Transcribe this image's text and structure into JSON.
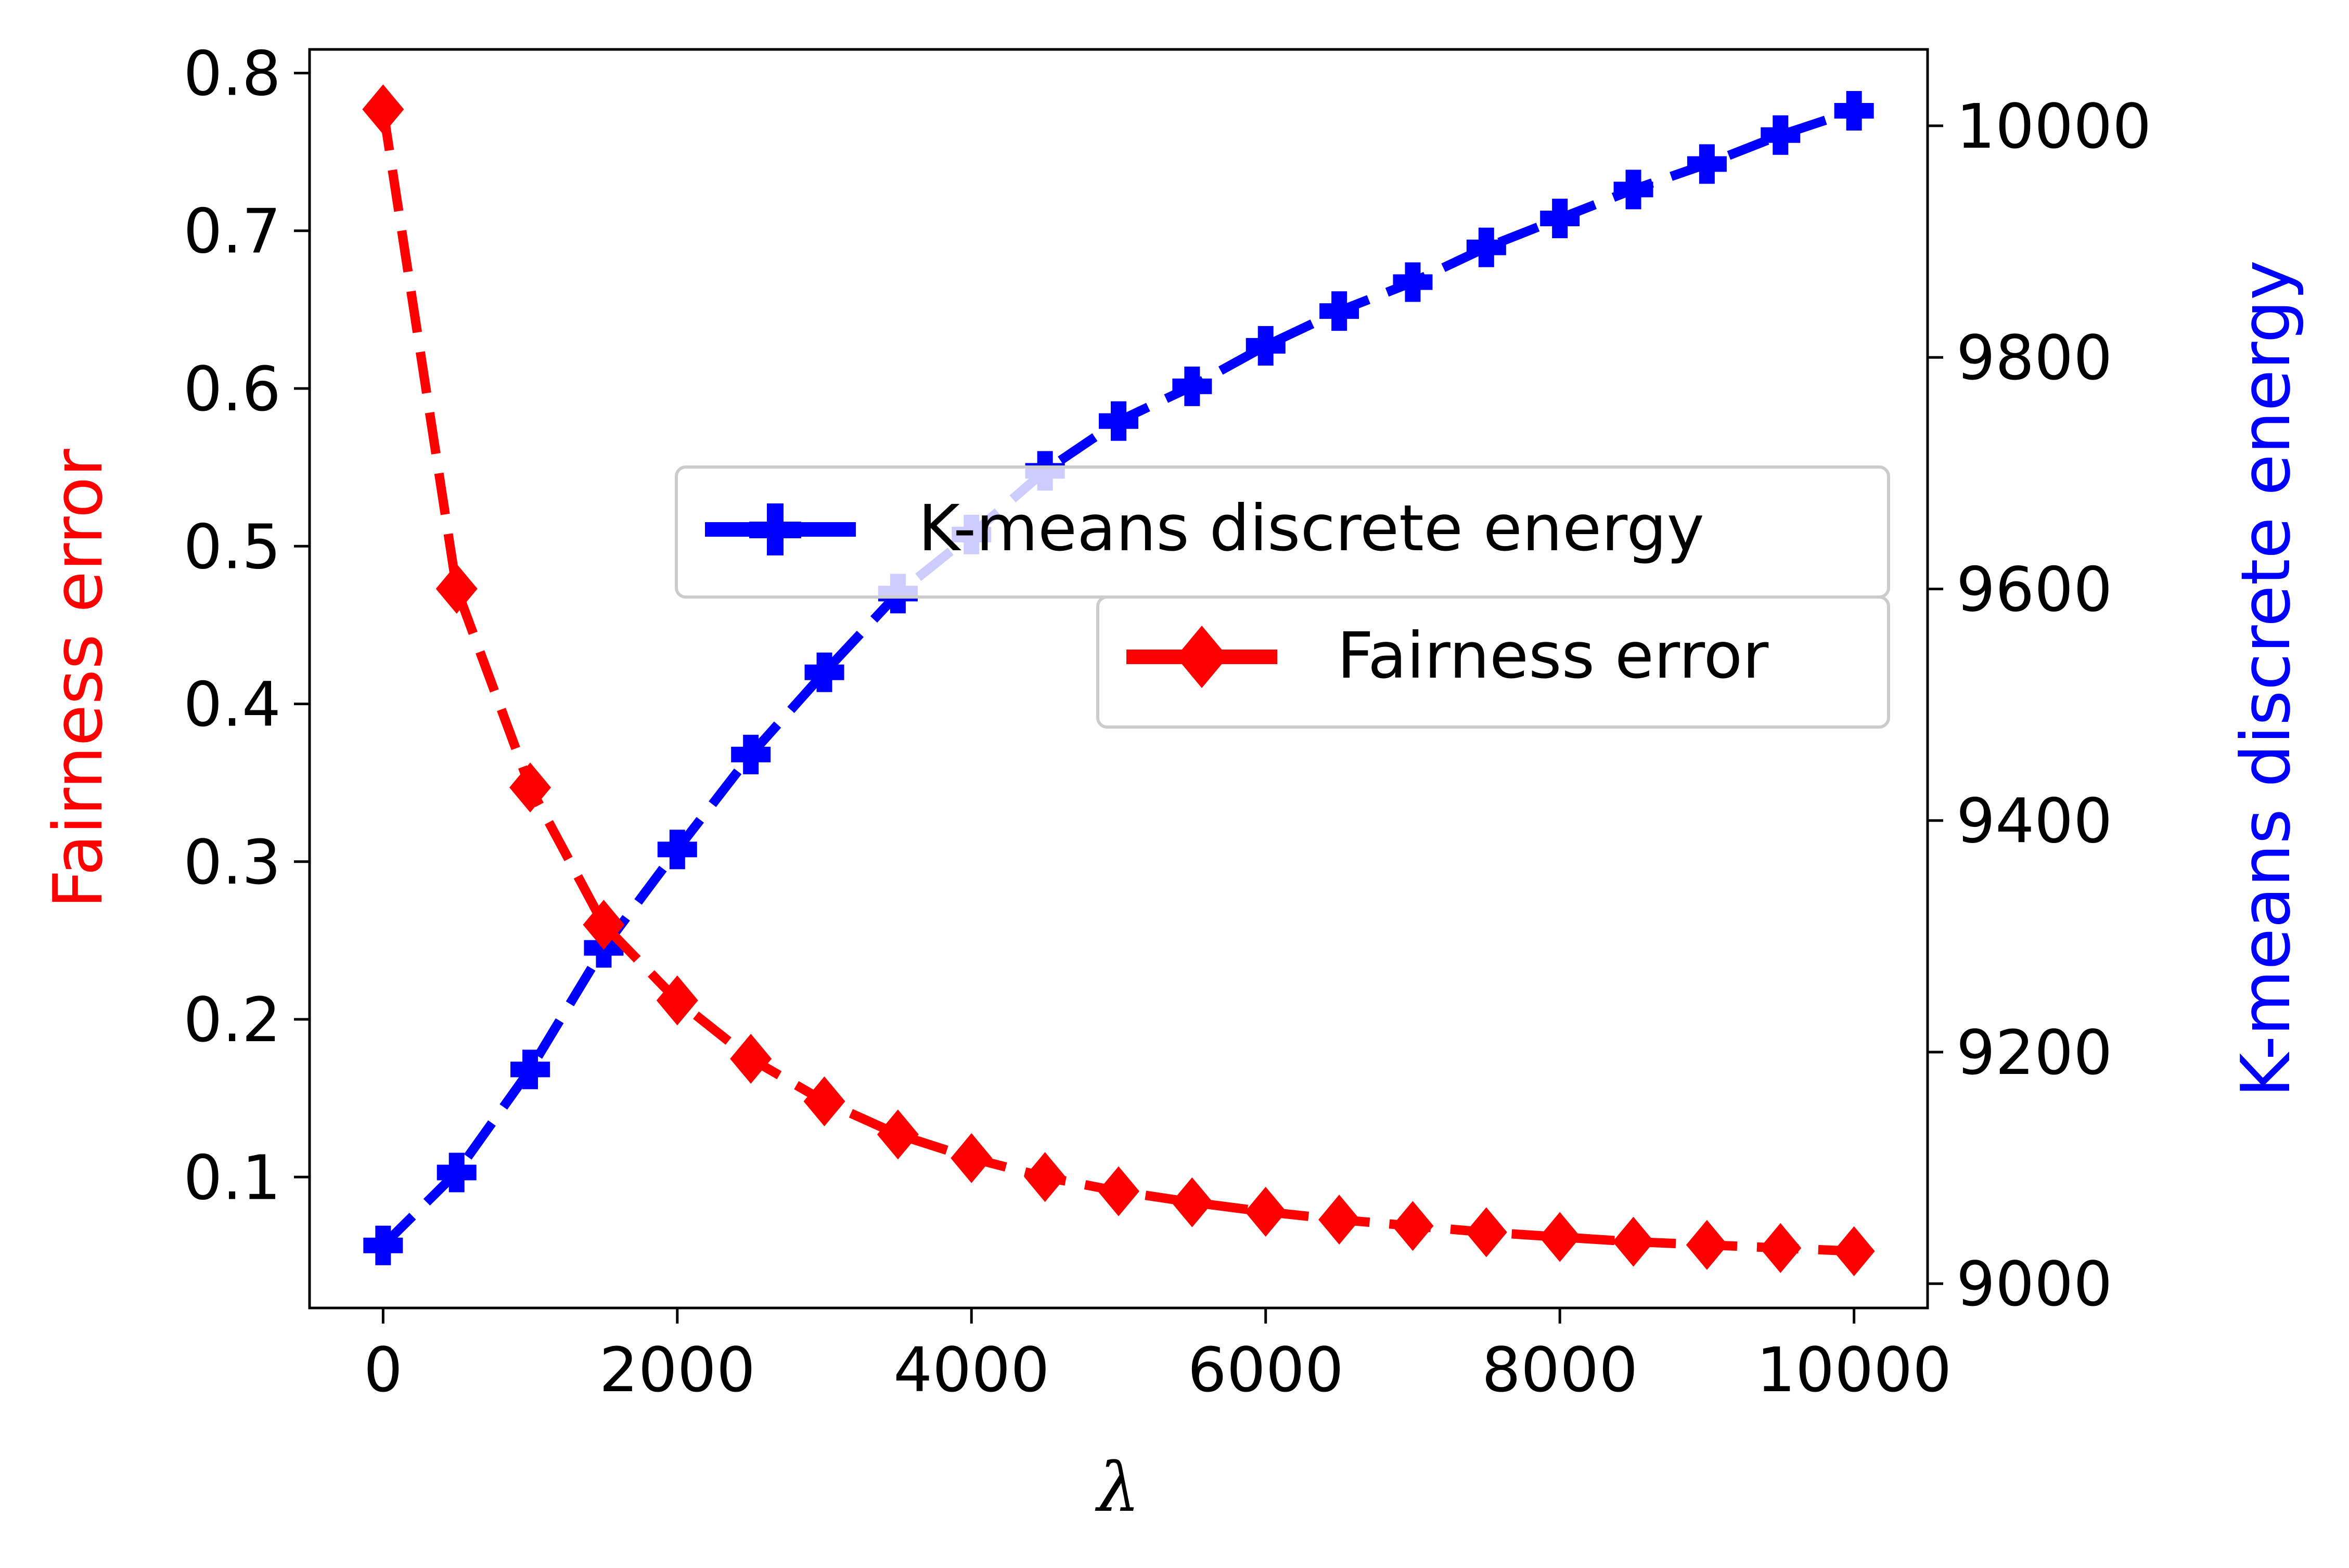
{
  "chart_data": {
    "type": "line",
    "xlabel": "λ",
    "x": [
      0,
      500,
      1000,
      1500,
      2000,
      2500,
      3000,
      3500,
      4000,
      4500,
      5000,
      5500,
      6000,
      6500,
      7000,
      7500,
      8000,
      8500,
      9000,
      9500,
      10000
    ],
    "xlim": [
      -500,
      10500
    ],
    "xticks": [
      0,
      2000,
      4000,
      6000,
      8000,
      10000
    ],
    "left_axis": {
      "label": "Fairness error",
      "color": "#ff0000",
      "ylim": [
        0.017,
        0.815
      ],
      "ticks": [
        0.1,
        0.2,
        0.3,
        0.4,
        0.5,
        0.6,
        0.7,
        0.8
      ],
      "tick_labels": [
        "0.1",
        "0.2",
        "0.3",
        "0.4",
        "0.5",
        "0.6",
        "0.7",
        "0.8"
      ]
    },
    "right_axis": {
      "label": "K-means discrete energy",
      "color": "#0000ff",
      "ylim": [
        8979,
        10066
      ],
      "ticks": [
        9000,
        9200,
        9400,
        9600,
        9800,
        10000
      ],
      "tick_labels": [
        "9000",
        "9200",
        "9400",
        "9600",
        "9800",
        "10000"
      ]
    },
    "series": [
      {
        "name": "K-means discrete energy",
        "axis": "right",
        "color": "#0000ff",
        "marker": "plus",
        "linestyle": "dashed",
        "values": [
          9033,
          9096,
          9185,
          9290,
          9375,
          9457,
          9528,
          9596,
          9647,
          9702,
          9745,
          9775,
          9810,
          9840,
          9865,
          9895,
          9920,
          9945,
          9967,
          9992,
          10013
        ]
      },
      {
        "name": "Fairness error",
        "axis": "left",
        "color": "#ff0000",
        "marker": "diamond",
        "linestyle": "dashed",
        "values": [
          0.777,
          0.473,
          0.347,
          0.26,
          0.212,
          0.175,
          0.148,
          0.127,
          0.112,
          0.1,
          0.091,
          0.084,
          0.078,
          0.073,
          0.069,
          0.065,
          0.062,
          0.059,
          0.057,
          0.055,
          0.053
        ]
      }
    ],
    "legend": {
      "entries": [
        "K-means discrete energy",
        "Fairness error"
      ]
    }
  }
}
